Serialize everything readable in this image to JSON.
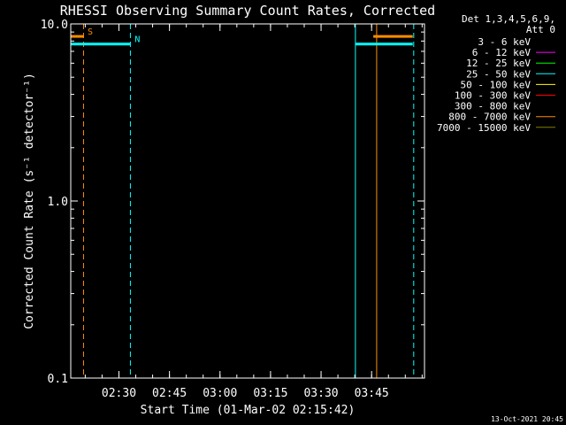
{
  "chart_data": {
    "type": "line",
    "title": "RHESSI Observing Summary Count Rates, Corrected",
    "xlabel": "Start Time (01-Mar-02 02:15:42)",
    "ylabel": "Corrected Count Rate (s⁻¹ detector⁻¹)",
    "yscale": "log",
    "ylim": [
      0.1,
      10.0
    ],
    "yticks": [
      "0.1",
      "1.0",
      "10.0"
    ],
    "xlim_minutes": [
      0,
      105
    ],
    "xticks": [
      {
        "minute": 14.3,
        "label": "02:30"
      },
      {
        "minute": 29.3,
        "label": "02:45"
      },
      {
        "minute": 44.3,
        "label": "03:00"
      },
      {
        "minute": 59.3,
        "label": "03:15"
      },
      {
        "minute": 74.3,
        "label": "03:30"
      },
      {
        "minute": 89.3,
        "label": "03:45"
      }
    ],
    "legend": {
      "placement": "right",
      "header": [
        "Det 1,3,4,5,6,9,",
        "Att 0"
      ],
      "entries": [
        {
          "label": "3 - 6 keV",
          "color": "#000000"
        },
        {
          "label": "6 - 12 keV",
          "color": "#ff00ff"
        },
        {
          "label": "12 - 25 keV",
          "color": "#00ff00"
        },
        {
          "label": "25 - 50 keV",
          "color": "#00ffff"
        },
        {
          "label": "50 - 100 keV",
          "color": "#ffff00"
        },
        {
          "label": "100 - 300 keV",
          "color": "#ff0000"
        },
        {
          "label": "300 - 800 keV",
          "color": "#000000"
        },
        {
          "label": "800 - 7000 keV",
          "color": "#ff8c00"
        },
        {
          "label": "7000 - 15000 keV",
          "color": "#808000"
        }
      ]
    },
    "series": [
      {
        "color": "#ff8c00",
        "segments": [
          [
            [
              0,
              8.5
            ],
            [
              3.8,
              8.5
            ]
          ],
          [
            [
              89.8,
              8.5
            ],
            [
              101.5,
              8.5
            ]
          ]
        ]
      },
      {
        "color": "#00ffff",
        "segments": [
          [
            [
              0,
              7.7
            ],
            [
              17.7,
              7.7
            ]
          ],
          [
            [
              84.5,
              7.7
            ],
            [
              101.5,
              7.7
            ]
          ]
        ]
      }
    ],
    "vlines": [
      {
        "minute": 3.8,
        "color": "#ff8c00",
        "style": "dashed"
      },
      {
        "minute": 17.7,
        "color": "#00ffff",
        "style": "dashed"
      },
      {
        "minute": 84.5,
        "color": "#00ffff",
        "style": "solid"
      },
      {
        "minute": 90.8,
        "color": "#ff8c00",
        "style": "solid"
      },
      {
        "minute": 101.8,
        "color": "#00ffff",
        "style": "dashed"
      }
    ],
    "annotations": [
      {
        "text": "S",
        "minute": 5.0,
        "value": 8.5,
        "color": "#ff8c00"
      },
      {
        "text": "N",
        "minute": 19.0,
        "value": 7.7,
        "color": "#00ffff"
      }
    ],
    "timestamp": "13-Oct-2021 20:45"
  }
}
